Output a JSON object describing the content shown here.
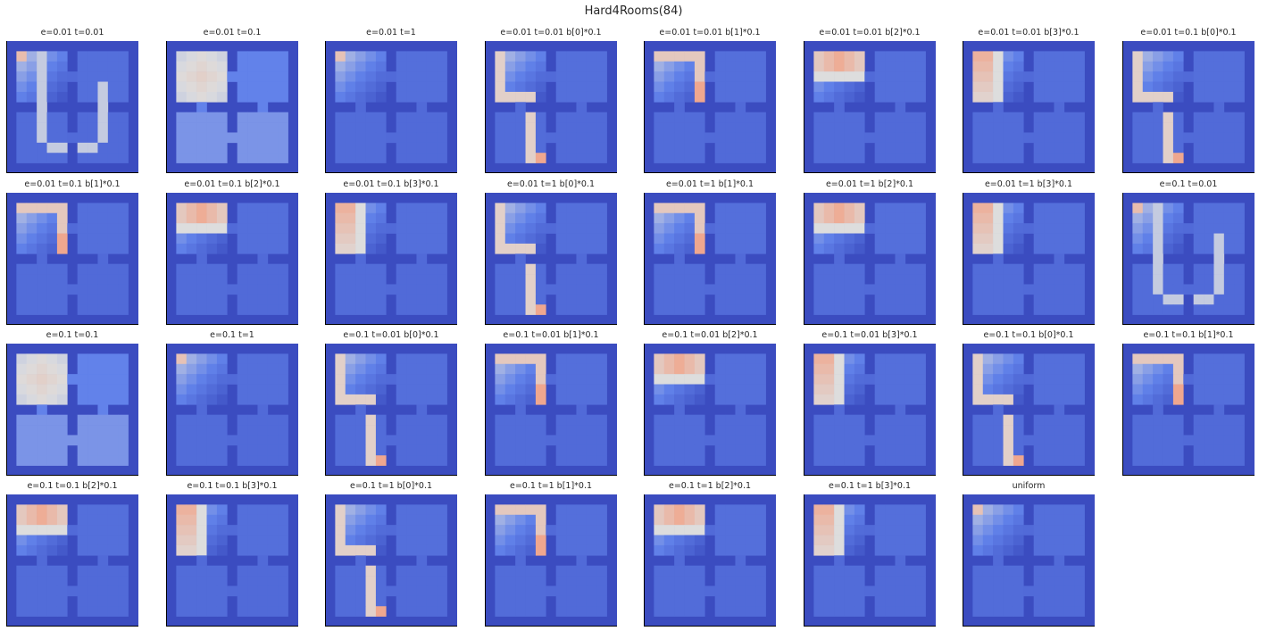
{
  "title": "Hard4Rooms(84)",
  "colormap": "coolwarm",
  "colors": {
    "wall": "#3b4cc0",
    "low": "#3b4cc0",
    "mid": "#dddddd",
    "high": "#b40426"
  },
  "chart_data": {
    "type": "heatmap",
    "title": "Hard4Rooms(84)",
    "grid_layout": {
      "rows": 4,
      "cols": 8
    },
    "axes_ticks": false,
    "panels": [
      "e=0.01 t=0.01",
      "e=0.01 t=0.1",
      "e=0.01 t=1",
      "e=0.01 t=0.01 b[0]*0.1",
      "e=0.01 t=0.01 b[1]*0.1",
      "e=0.01 t=0.01 b[2]*0.1",
      "e=0.01 t=0.01 b[3]*0.1",
      "e=0.01 t=0.1 b[0]*0.1",
      "e=0.01 t=0.1 b[1]*0.1",
      "e=0.01 t=0.1 b[2]*0.1",
      "e=0.01 t=0.1 b[3]*0.1",
      "e=0.01 t=1 b[0]*0.1",
      "e=0.01 t=1 b[1]*0.1",
      "e=0.01 t=1 b[2]*0.1",
      "e=0.01 t=1 b[3]*0.1",
      "e=0.1 t=0.01",
      "e=0.1 t=0.1",
      "e=0.1 t=1",
      "e=0.1 t=0.01 b[0]*0.1",
      "e=0.1 t=0.01 b[1]*0.1",
      "e=0.1 t=0.01 b[2]*0.1",
      "e=0.1 t=0.01 b[3]*0.1",
      "e=0.1 t=0.1 b[0]*0.1",
      "e=0.1 t=0.1 b[1]*0.1",
      "e=0.1 t=0.1 b[2]*0.1",
      "e=0.1 t=0.1 b[3]*0.1",
      "e=0.1 t=1 b[0]*0.1",
      "e=0.1 t=1 b[1]*0.1",
      "e=0.1 t=1 b[2]*0.1",
      "e=0.1 t=1 b[3]*0.1",
      "uniform"
    ]
  }
}
